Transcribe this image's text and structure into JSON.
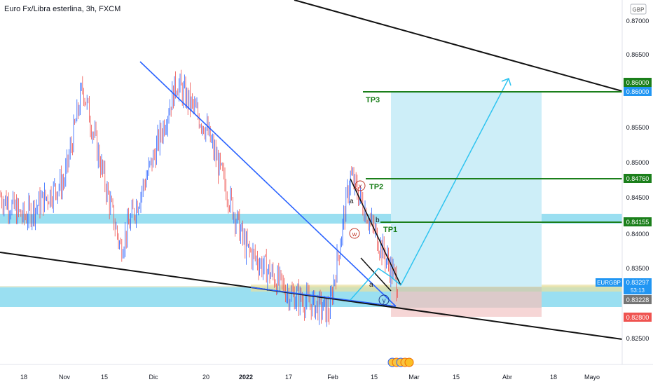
{
  "header": {
    "title": "Euro Fx/Libra esterlina, 3h, FXCM",
    "currency": "GBP"
  },
  "labels": {
    "tp1": "TP1",
    "tp2": "TP2",
    "tp3": "TP3",
    "wave_x": "x",
    "wave_w": "w",
    "wave_y": "y",
    "wave_a1": "a",
    "wave_b": "b",
    "wave_a2": "a",
    "countdown": "53:13"
  },
  "chart_data": {
    "type": "line",
    "title": "Euro Fx/Libra esterlina, 3h, FXCM",
    "ylim": [
      0.8225,
      0.871
    ],
    "x_ticks": [
      "18",
      "Nov",
      "15",
      "Dic",
      "20",
      "2022",
      "17",
      "Feb",
      "15",
      "Mar",
      "15",
      "Abr",
      "18",
      "Mayo"
    ],
    "y_ticks": [
      "0.87000",
      "0.86500",
      "0.86000",
      "0.85500",
      "0.85000",
      "0.84500",
      "0.84000",
      "0.83500",
      "0.82500"
    ],
    "price_badges": [
      {
        "label": "0.86000",
        "color": "#1b7f1b"
      },
      {
        "label": "0.86000",
        "color": "#2196f3"
      },
      {
        "label": "0.84760",
        "color": "#1b7f1b"
      },
      {
        "label": "0.84155",
        "color": "#1b7f1b"
      },
      {
        "label": "EURGBP",
        "color": "#2196f3"
      },
      {
        "label": "0.83297",
        "color": "#2196f3"
      },
      {
        "label": "0.83228",
        "color": "#757575"
      },
      {
        "label": "0.82800",
        "color": "#ef5350"
      }
    ],
    "levels": {
      "tp3": 0.86,
      "tp2": 0.8476,
      "tp1": 0.84155,
      "entry": 0.83228,
      "stop": 0.828,
      "last": 0.83297
    },
    "price_path": [
      {
        "x": "Oct (early)",
        "y": 0.845
      },
      {
        "x": "18",
        "y": 0.842
      },
      {
        "x": "Nov",
        "y": 0.847
      },
      {
        "x": "Nov (peak)",
        "y": 0.8595
      },
      {
        "x": "15",
        "y": 0.847
      },
      {
        "x": "Nov (low)",
        "y": 0.838
      },
      {
        "x": "Dic",
        "y": 0.85
      },
      {
        "x": "Dic (peak)",
        "y": 0.86
      },
      {
        "x": "20",
        "y": 0.854
      },
      {
        "x": "2022",
        "y": 0.838
      },
      {
        "x": "17",
        "y": 0.832
      },
      {
        "x": "Feb (low)",
        "y": 0.8295
      },
      {
        "x": "Feb (high)",
        "y": 0.8476
      },
      {
        "x": "15",
        "y": 0.833
      }
    ],
    "colors": {
      "zone": "#8fdcf0",
      "bull_candle": "#2962ff",
      "bear_candle": "#ef5350",
      "target_box": "#cdeef8",
      "stop_box": "#f6d6d6",
      "tp_line": "#1b7f1b",
      "arrow": "#2ec4f0"
    }
  }
}
